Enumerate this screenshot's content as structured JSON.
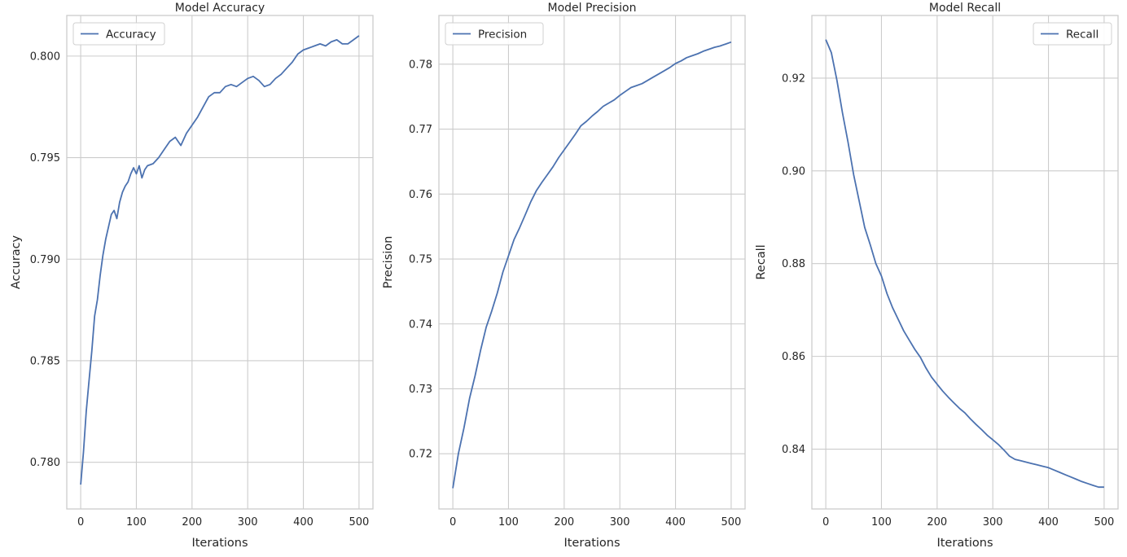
{
  "chart_data": [
    {
      "type": "line",
      "title": "Model Accuracy",
      "xlabel": "Iterations",
      "ylabel": "Accuracy",
      "xlim": [
        -25,
        525
      ],
      "ylim": [
        0.7777,
        0.802
      ],
      "xticks": [
        0,
        100,
        200,
        300,
        400,
        500
      ],
      "xtick_labels": [
        "0",
        "100",
        "200",
        "300",
        "400",
        "500"
      ],
      "yticks": [
        0.78,
        0.785,
        0.79,
        0.795,
        0.8
      ],
      "ytick_labels": [
        "0.780",
        "0.785",
        "0.790",
        "0.795",
        "0.800"
      ],
      "grid": true,
      "legend_position": "upper-left",
      "series": [
        {
          "name": "Accuracy",
          "color": "#4c72b0",
          "x": [
            0,
            5,
            10,
            15,
            20,
            25,
            30,
            35,
            40,
            45,
            50,
            55,
            60,
            65,
            70,
            75,
            80,
            85,
            90,
            95,
            100,
            105,
            110,
            115,
            120,
            130,
            140,
            150,
            160,
            170,
            180,
            190,
            200,
            210,
            220,
            230,
            240,
            250,
            260,
            270,
            280,
            290,
            300,
            310,
            320,
            330,
            340,
            350,
            360,
            370,
            380,
            390,
            400,
            410,
            420,
            430,
            440,
            450,
            460,
            470,
            480,
            490,
            500
          ],
          "y": [
            0.7789,
            0.7805,
            0.7825,
            0.784,
            0.7855,
            0.7872,
            0.788,
            0.7892,
            0.7902,
            0.791,
            0.7916,
            0.7922,
            0.7924,
            0.792,
            0.7928,
            0.7933,
            0.7936,
            0.7938,
            0.7942,
            0.7945,
            0.7942,
            0.7946,
            0.794,
            0.7944,
            0.7946,
            0.7947,
            0.795,
            0.7954,
            0.7958,
            0.796,
            0.7956,
            0.7962,
            0.7966,
            0.797,
            0.7975,
            0.798,
            0.7982,
            0.7982,
            0.7985,
            0.7986,
            0.7985,
            0.7987,
            0.7989,
            0.799,
            0.7988,
            0.7985,
            0.7986,
            0.7989,
            0.7991,
            0.7994,
            0.7997,
            0.8001,
            0.8003,
            0.8004,
            0.8005,
            0.8006,
            0.8005,
            0.8007,
            0.8008,
            0.8006,
            0.8006,
            0.8008,
            0.801
          ]
        }
      ]
    },
    {
      "type": "line",
      "title": "Model Precision",
      "xlabel": "Iterations",
      "ylabel": "Precision",
      "xlim": [
        -25,
        525
      ],
      "ylim": [
        0.7115,
        0.7875
      ],
      "xticks": [
        0,
        100,
        200,
        300,
        400,
        500
      ],
      "xtick_labels": [
        "0",
        "100",
        "200",
        "300",
        "400",
        "500"
      ],
      "yticks": [
        0.72,
        0.73,
        0.74,
        0.75,
        0.76,
        0.77,
        0.78
      ],
      "ytick_labels": [
        "0.72",
        "0.73",
        "0.74",
        "0.75",
        "0.76",
        "0.77",
        "0.78"
      ],
      "grid": true,
      "legend_position": "upper-left",
      "series": [
        {
          "name": "Precision",
          "color": "#4c72b0",
          "x": [
            0,
            10,
            20,
            30,
            40,
            50,
            60,
            70,
            80,
            90,
            100,
            110,
            120,
            130,
            140,
            150,
            160,
            170,
            180,
            190,
            200,
            210,
            220,
            230,
            240,
            250,
            260,
            270,
            280,
            290,
            300,
            310,
            320,
            330,
            340,
            350,
            360,
            370,
            380,
            390,
            400,
            410,
            420,
            430,
            440,
            450,
            460,
            470,
            480,
            490,
            500
          ],
          "y": [
            0.7147,
            0.72,
            0.724,
            0.7285,
            0.732,
            0.736,
            0.7395,
            0.742,
            0.7448,
            0.748,
            0.7505,
            0.753,
            0.7548,
            0.7568,
            0.7588,
            0.7605,
            0.7618,
            0.763,
            0.7642,
            0.7656,
            0.7668,
            0.768,
            0.7692,
            0.7705,
            0.7712,
            0.772,
            0.7727,
            0.7735,
            0.774,
            0.7745,
            0.7752,
            0.7758,
            0.7764,
            0.7767,
            0.777,
            0.7775,
            0.778,
            0.7785,
            0.779,
            0.7795,
            0.7801,
            0.7805,
            0.781,
            0.7813,
            0.7816,
            0.782,
            0.7823,
            0.7826,
            0.7828,
            0.7831,
            0.7834
          ]
        }
      ]
    },
    {
      "type": "line",
      "title": "Model Recall",
      "xlabel": "Iterations",
      "ylabel": "Recall",
      "xlim": [
        -25,
        525
      ],
      "ylim": [
        0.8271,
        0.9335
      ],
      "xticks": [
        0,
        100,
        200,
        300,
        400,
        500
      ],
      "xtick_labels": [
        "0",
        "100",
        "200",
        "300",
        "400",
        "500"
      ],
      "yticks": [
        0.84,
        0.86,
        0.88,
        0.9,
        0.92
      ],
      "ytick_labels": [
        "0.84",
        "0.86",
        "0.88",
        "0.90",
        "0.92"
      ],
      "grid": true,
      "legend_position": "upper-right",
      "series": [
        {
          "name": "Recall",
          "color": "#4c72b0",
          "x": [
            0,
            10,
            20,
            30,
            40,
            50,
            60,
            70,
            80,
            90,
            100,
            110,
            120,
            130,
            140,
            150,
            160,
            170,
            180,
            190,
            200,
            210,
            220,
            230,
            240,
            250,
            260,
            270,
            280,
            290,
            300,
            310,
            320,
            330,
            340,
            350,
            360,
            370,
            380,
            390,
            400,
            410,
            420,
            430,
            440,
            450,
            460,
            470,
            480,
            490,
            500
          ],
          "y": [
            0.9283,
            0.9255,
            0.9195,
            0.9125,
            0.9062,
            0.8992,
            0.8935,
            0.8878,
            0.884,
            0.88,
            0.8773,
            0.8735,
            0.8705,
            0.868,
            0.8655,
            0.8635,
            0.8615,
            0.8598,
            0.8575,
            0.8555,
            0.854,
            0.8525,
            0.8512,
            0.85,
            0.8488,
            0.8478,
            0.8465,
            0.8453,
            0.8442,
            0.843,
            0.842,
            0.841,
            0.8398,
            0.8385,
            0.8378,
            0.8375,
            0.8372,
            0.8369,
            0.8366,
            0.8363,
            0.836,
            0.8355,
            0.835,
            0.8345,
            0.834,
            0.8335,
            0.833,
            0.8326,
            0.8322,
            0.8318,
            0.8318
          ]
        }
      ]
    }
  ]
}
